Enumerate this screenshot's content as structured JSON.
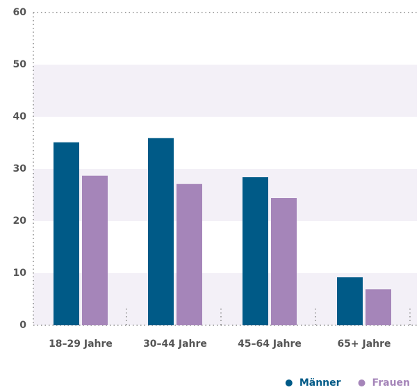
{
  "chart_data": {
    "type": "bar",
    "categories": [
      "18–29 Jahre",
      "30–44 Jahre",
      "45–64 Jahre",
      "65+ Jahre"
    ],
    "series": [
      {
        "name": "Männer",
        "color": "#005a87",
        "values": [
          35.1,
          35.9,
          28.4,
          9.2
        ]
      },
      {
        "name": "Frauen",
        "color": "#a585b9",
        "values": [
          28.7,
          27.1,
          24.4,
          6.9
        ]
      }
    ],
    "ylim": [
      0,
      60
    ],
    "yticks": [
      0,
      10,
      20,
      30,
      40,
      50,
      60
    ],
    "grid": true,
    "legend": "bottom-right"
  }
}
